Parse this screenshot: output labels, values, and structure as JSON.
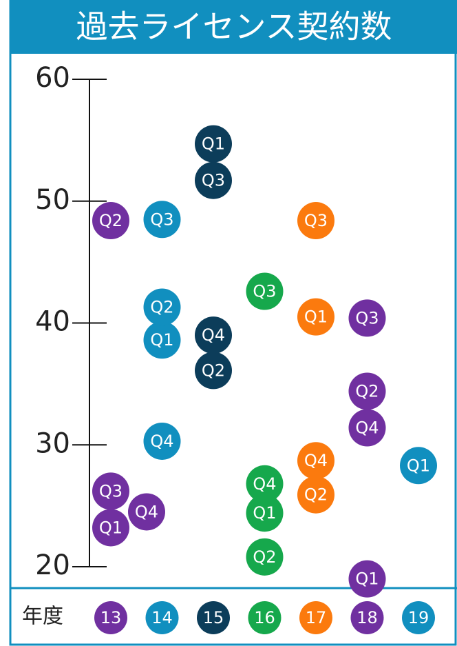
{
  "chart_data": {
    "type": "dot",
    "title": "過去ライセンス契約数",
    "x_label": "年度",
    "categories": [
      "13",
      "14",
      "15",
      "16",
      "17",
      "18",
      "19"
    ],
    "colors": [
      "#7030a0",
      "#118fbf",
      "#0c3d5a",
      "#16a84c",
      "#fb7a0e",
      "#7030a0",
      "#118fbf"
    ],
    "series": [
      {
        "name": "Q1",
        "values": [
          23.2,
          38.6,
          54.7,
          24.4,
          40.5,
          19.0,
          28.3
        ]
      },
      {
        "name": "Q2",
        "values": [
          48.4,
          41.3,
          36.1,
          20.8,
          25.9,
          34.4,
          null
        ]
      },
      {
        "name": "Q3",
        "values": [
          26.2,
          48.5,
          51.7,
          42.6,
          48.4,
          40.4,
          null
        ]
      },
      {
        "name": "Q4",
        "values": [
          24.5,
          30.3,
          39.0,
          26.8,
          28.7,
          31.4,
          null
        ]
      }
    ],
    "ylim": [
      20,
      60
    ],
    "yticks": [
      20,
      30,
      40,
      50,
      60
    ]
  }
}
